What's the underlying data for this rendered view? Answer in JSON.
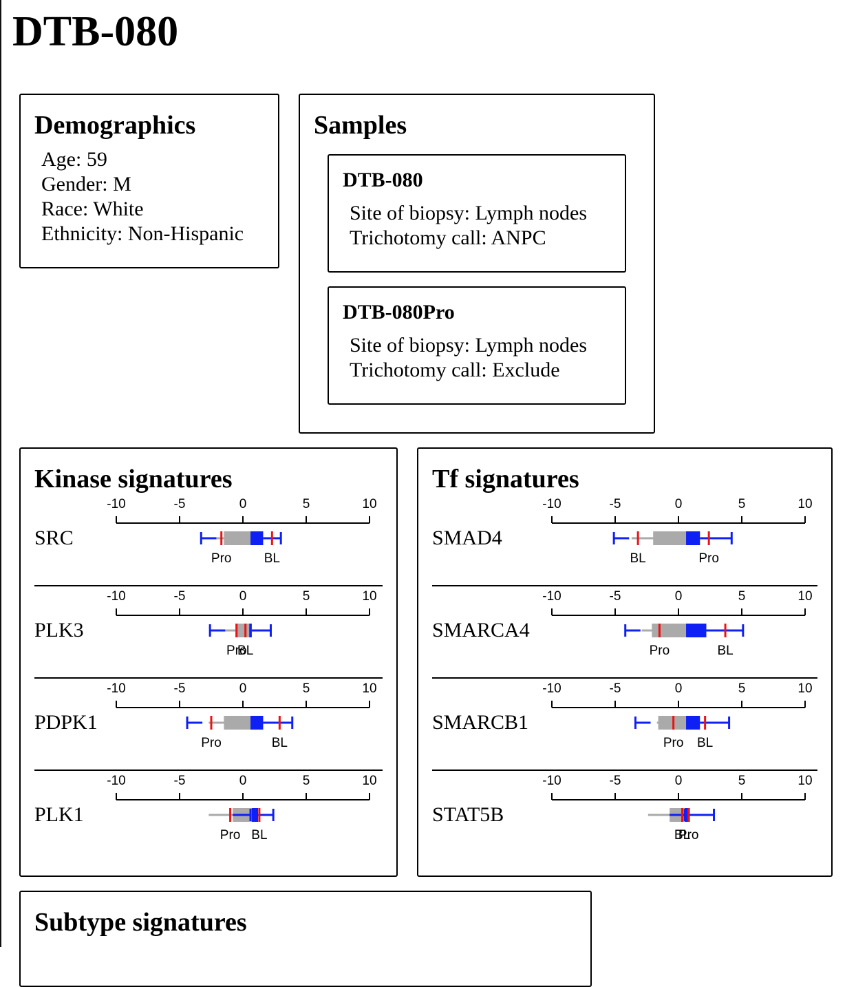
{
  "page": {
    "title": "DTB-080"
  },
  "demographics": {
    "heading": "Demographics",
    "lines": [
      "Age: 59",
      "Gender: M",
      "Race: White",
      "Ethnicity: Non-Hispanic"
    ]
  },
  "samples": {
    "heading": "Samples",
    "items": [
      {
        "name": "DTB-080",
        "lines": [
          "Site of biopsy: Lymph nodes",
          "Trichotomy call: ANPC"
        ]
      },
      {
        "name": "DTB-080Pro",
        "lines": [
          "Site of biopsy: Lymph nodes",
          "Trichotomy call: Exclude"
        ]
      }
    ]
  },
  "axis": {
    "ticks": [
      -10,
      -5,
      0,
      5,
      10
    ],
    "tick_labels": [
      "-10",
      "-5",
      "0",
      "5",
      "10"
    ],
    "range": [
      -10,
      10
    ]
  },
  "colors": {
    "box_grey": "#aaaaaa",
    "box_blue": "#0f20f5",
    "marker_red": "#ee1111",
    "text": "#000000"
  },
  "kinase": {
    "heading": "Kinase signatures",
    "rows": [
      {
        "name": "SRC",
        "gmin": -2.5,
        "q1": -1.5,
        "q3": 0.6,
        "gmax": -1.2,
        "bq3": 1.6,
        "bmax": 3.0,
        "bmin": -3.3,
        "markers": [
          {
            "label": "Pro",
            "value": -1.7
          },
          {
            "label": "BL",
            "value": 2.3
          }
        ]
      },
      {
        "name": "PLK3",
        "gmin": -2.6,
        "q1": -0.6,
        "q3": 0.5,
        "gmax": 0.7,
        "bq3": 0.7,
        "bmax": 2.2,
        "bmin": -2.6,
        "markers": [
          {
            "label": "Pro",
            "value": -0.5
          },
          {
            "label": "BL",
            "value": 0.2
          }
        ]
      },
      {
        "name": "PDPK1",
        "gmin": -2.7,
        "q1": -1.5,
        "q3": 0.6,
        "gmax": 0.6,
        "bq3": 1.6,
        "bmax": 3.9,
        "bmin": -4.4,
        "markers": [
          {
            "label": "Pro",
            "value": -2.5
          },
          {
            "label": "BL",
            "value": 2.9
          }
        ]
      },
      {
        "name": "PLK1",
        "gmin": -2.7,
        "q1": -0.8,
        "q3": 0.7,
        "gmax": 0.9,
        "bq3": 1.2,
        "bmax": 2.4,
        "bmin": 0.6,
        "markers": [
          {
            "label": "Pro",
            "value": -1.0
          },
          {
            "label": "BL",
            "value": 1.3
          }
        ]
      }
    ]
  },
  "tf": {
    "heading": "Tf signatures",
    "rows": [
      {
        "name": "SMAD4",
        "gmin": -3.7,
        "q1": -2.0,
        "q3": 0.6,
        "gmax": 0.6,
        "bq3": 1.7,
        "bmax": 4.2,
        "bmin": -5.1,
        "markers": [
          {
            "label": "BL",
            "value": -3.2
          },
          {
            "label": "Pro",
            "value": 2.4
          }
        ]
      },
      {
        "name": "SMARCA4",
        "gmin": -2.9,
        "q1": -2.1,
        "q3": 0.6,
        "gmax": 0.6,
        "bq3": 2.2,
        "bmax": 5.1,
        "bmin": -4.2,
        "markers": [
          {
            "label": "Pro",
            "value": -1.5
          },
          {
            "label": "BL",
            "value": 3.7
          }
        ]
      },
      {
        "name": "SMARCB1",
        "gmin": -1.7,
        "q1": -1.6,
        "q3": 0.6,
        "gmax": 0.6,
        "bq3": 1.7,
        "bmax": 4.0,
        "bmin": -3.4,
        "markers": [
          {
            "label": "Pro",
            "value": -0.4
          },
          {
            "label": "BL",
            "value": 2.1
          }
        ]
      },
      {
        "name": "STAT5B",
        "gmin": -2.4,
        "q1": -0.7,
        "q3": 0.5,
        "gmax": 0.6,
        "bq3": 0.9,
        "bmax": 2.8,
        "bmin": 0.5,
        "markers": [
          {
            "label": "BL",
            "value": 0.3
          },
          {
            "label": "Pro",
            "value": 0.8
          }
        ]
      }
    ]
  },
  "subtype": {
    "heading": "Subtype signatures"
  }
}
